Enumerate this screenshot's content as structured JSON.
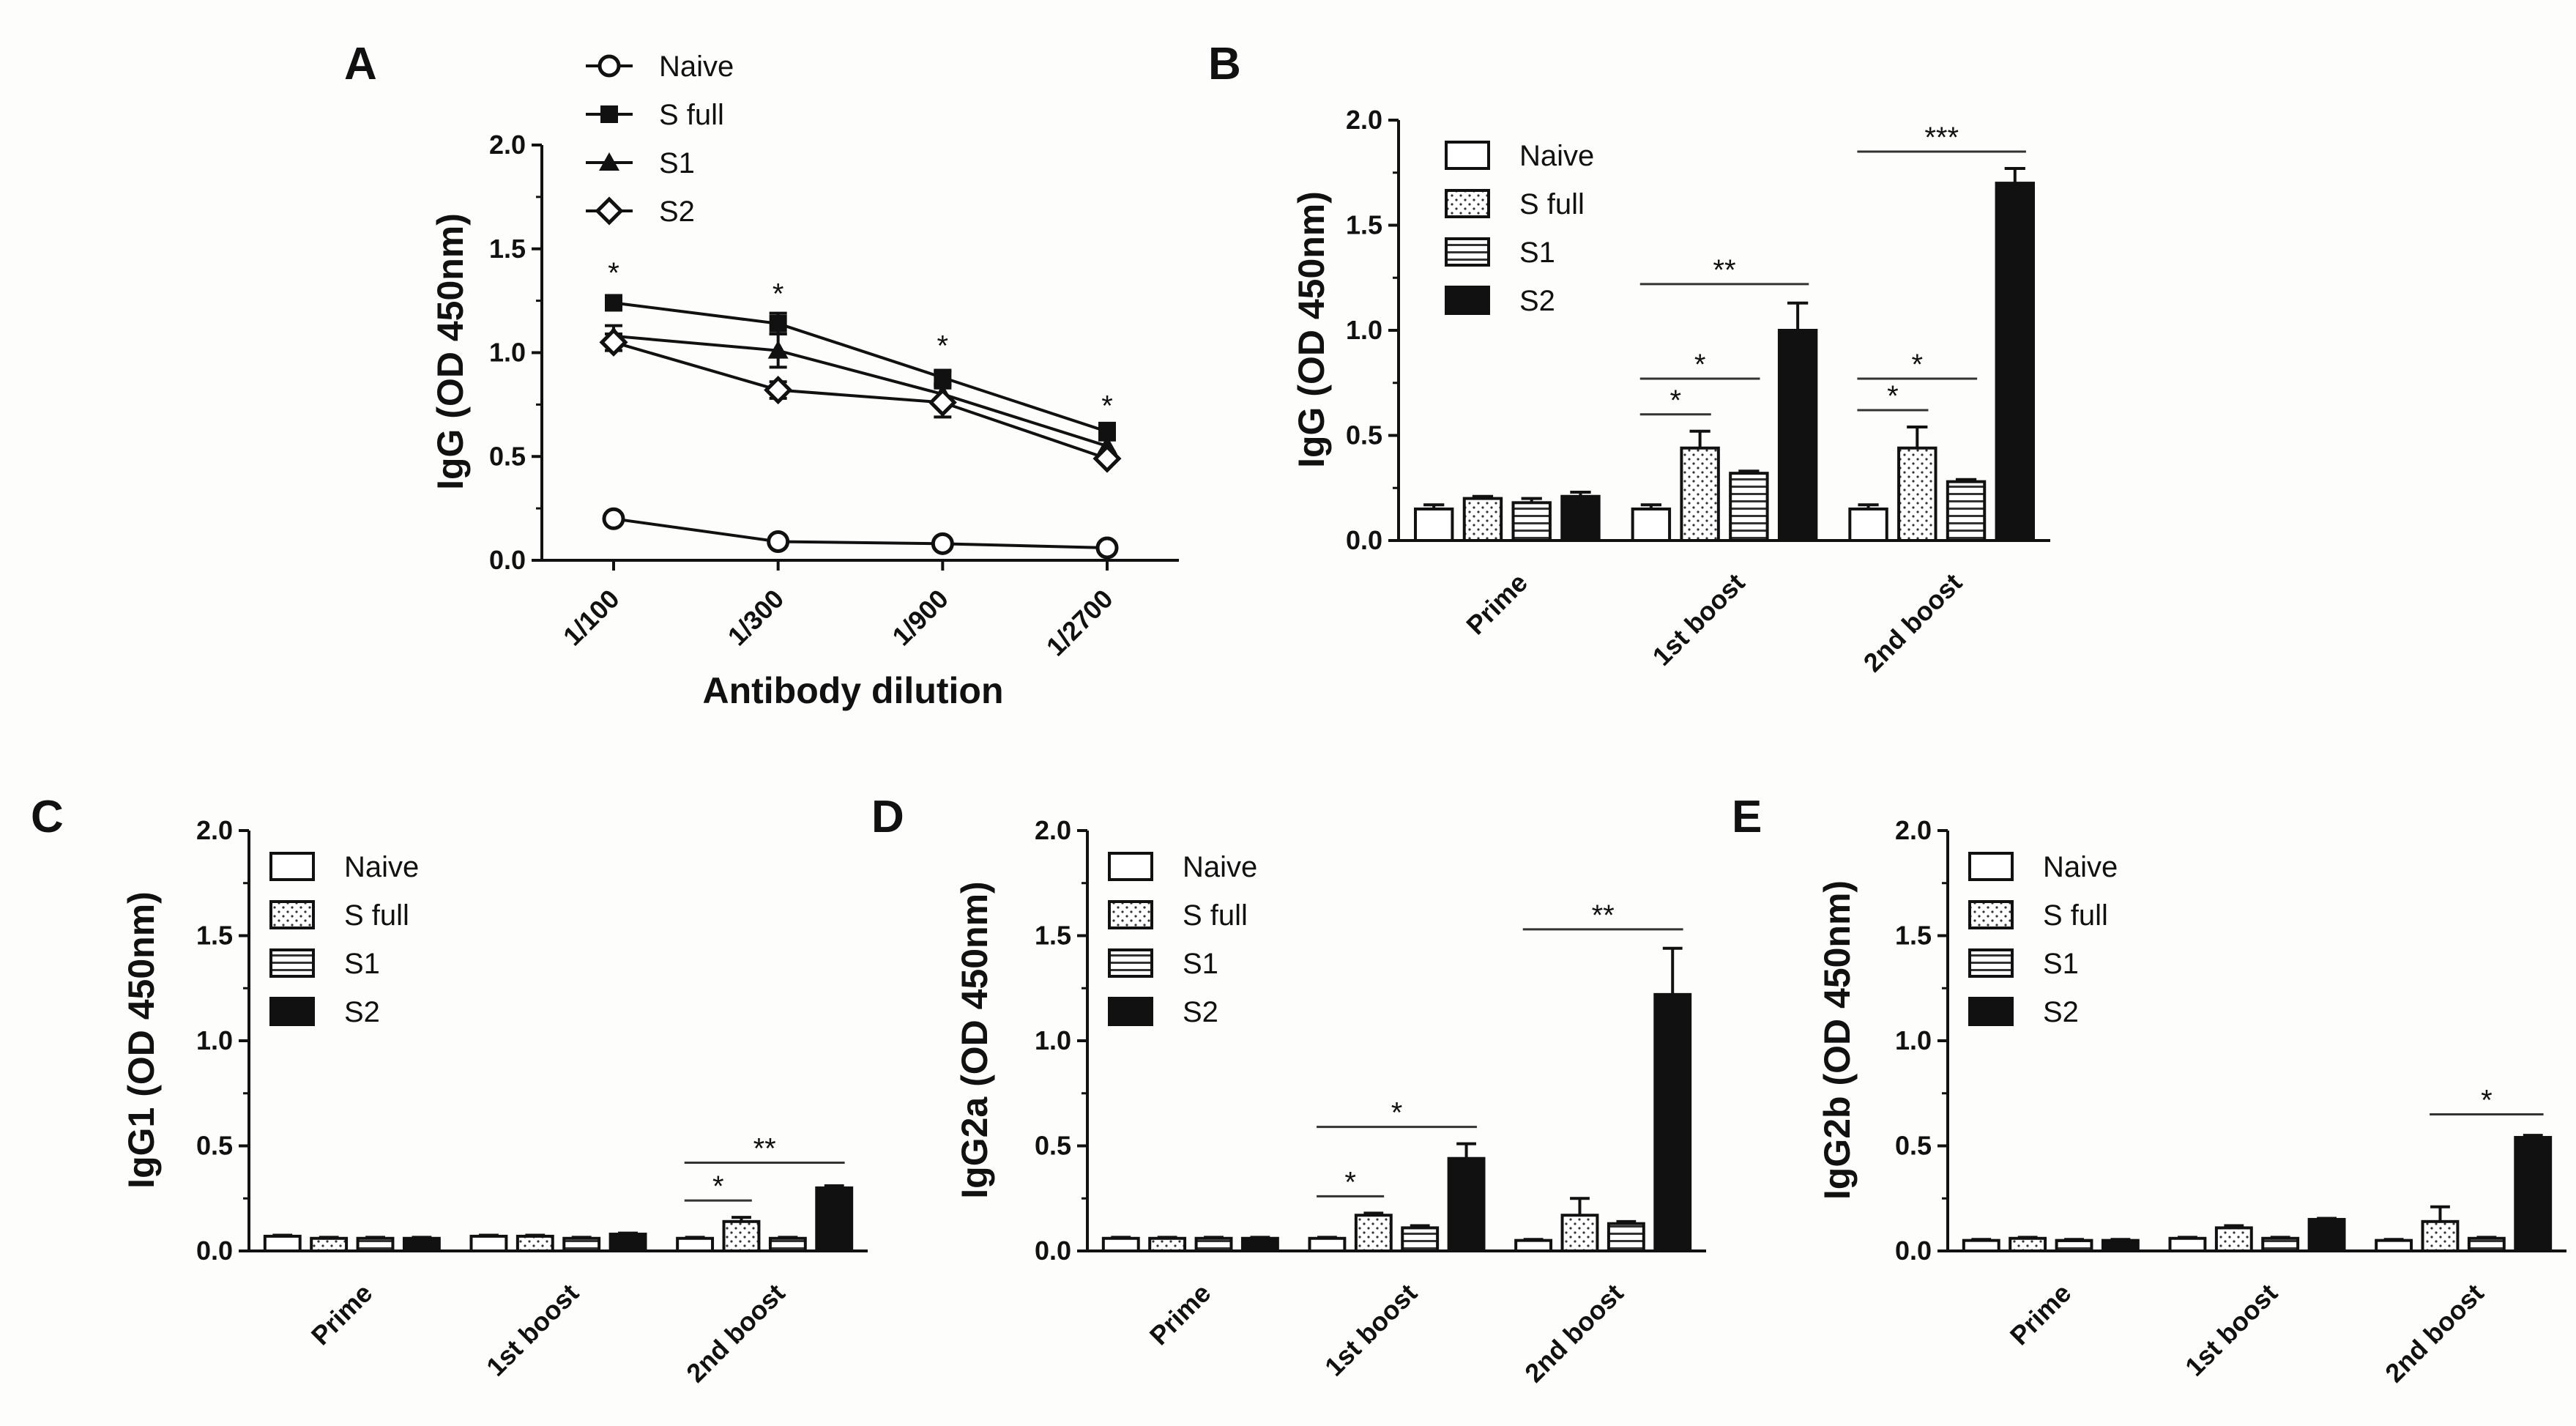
{
  "figure": {
    "legend_labels": [
      "Naive",
      "S full",
      "S1",
      "S2"
    ],
    "group_colors": [
      "#ffffff",
      "#ffffff",
      "#ffffff",
      "#111111"
    ]
  },
  "chart_data": [
    {
      "panel": "A",
      "type": "line",
      "title": "",
      "xlabel": "Antibody dilution",
      "ylabel": "IgG (OD 450nm)",
      "categories": [
        "1/100",
        "1/300",
        "1/900",
        "1/2700"
      ],
      "ylim": [
        0,
        2.0
      ],
      "yticks": [
        "0.0",
        "0.5",
        "1.0",
        "1.5",
        "2.0"
      ],
      "legend_position": "top-left",
      "series": [
        {
          "name": "Naive",
          "marker": "circle",
          "values": [
            0.2,
            0.09,
            0.08,
            0.06
          ],
          "errors": [
            0.01,
            0.01,
            0.01,
            0.01
          ]
        },
        {
          "name": "S full",
          "marker": "square",
          "values": [
            1.24,
            1.14,
            0.88,
            0.62
          ],
          "errors": [
            0.02,
            0.05,
            0.03,
            0.04
          ]
        },
        {
          "name": "S1",
          "marker": "triangle",
          "values": [
            1.08,
            1.01,
            0.8,
            0.55
          ],
          "errors": [
            0.05,
            0.08,
            0.04,
            0.03
          ]
        },
        {
          "name": "S2",
          "marker": "diamond",
          "values": [
            1.05,
            0.82,
            0.76,
            0.49
          ],
          "errors": [
            0.04,
            0.04,
            0.07,
            0.02
          ]
        }
      ],
      "annotations": [
        {
          "text": "*",
          "category": "1/100",
          "y": 1.4
        },
        {
          "text": "*",
          "category": "1/300",
          "y": 1.3
        },
        {
          "text": "*",
          "category": "1/900",
          "y": 1.05
        },
        {
          "text": "*",
          "category": "1/2700",
          "y": 0.76
        }
      ]
    },
    {
      "panel": "B",
      "type": "bar",
      "title": "",
      "xlabel": "",
      "ylabel": "IgG (OD 450nm)",
      "categories": [
        "Prime",
        "1st boost",
        "2nd boost"
      ],
      "ylim": [
        0,
        2.0
      ],
      "yticks": [
        "0.0",
        "0.5",
        "1.0",
        "1.5",
        "2.0"
      ],
      "legend_position": "top-left",
      "series": [
        {
          "name": "Naive",
          "pattern": "white",
          "values": [
            0.15,
            0.15,
            0.15
          ],
          "errors": [
            0.02,
            0.02,
            0.02
          ]
        },
        {
          "name": "S full",
          "pattern": "dotted",
          "values": [
            0.2,
            0.44,
            0.44
          ],
          "errors": [
            0.01,
            0.08,
            0.1
          ]
        },
        {
          "name": "S1",
          "pattern": "striped",
          "values": [
            0.18,
            0.32,
            0.28
          ],
          "errors": [
            0.02,
            0.01,
            0.01
          ]
        },
        {
          "name": "S2",
          "pattern": "black",
          "values": [
            0.21,
            1.0,
            1.7
          ],
          "errors": [
            0.02,
            0.13,
            0.07
          ]
        }
      ],
      "significance": [
        {
          "text": "*",
          "category": "1st boost",
          "from": 0,
          "to": 1,
          "y": 0.6
        },
        {
          "text": "*",
          "category": "1st boost",
          "from": 0,
          "to": 2,
          "y": 0.77
        },
        {
          "text": "**",
          "category": "1st boost",
          "from": 0,
          "to": 3,
          "y": 1.22
        },
        {
          "text": "*",
          "category": "2nd boost",
          "from": 0,
          "to": 1,
          "y": 0.62
        },
        {
          "text": "*",
          "category": "2nd boost",
          "from": 0,
          "to": 2,
          "y": 0.77
        },
        {
          "text": "***",
          "category": "2nd boost",
          "from": 0,
          "to": 3,
          "y": 1.85
        }
      ]
    },
    {
      "panel": "C",
      "type": "bar",
      "title": "",
      "xlabel": "",
      "ylabel": "IgG1 (OD 450nm)",
      "categories": [
        "Prime",
        "1st boost",
        "2nd boost"
      ],
      "ylim": [
        0,
        2.0
      ],
      "yticks": [
        "0.0",
        "0.5",
        "1.0",
        "1.5",
        "2.0"
      ],
      "legend_position": "top-left",
      "series": [
        {
          "name": "Naive",
          "pattern": "white",
          "values": [
            0.07,
            0.07,
            0.06
          ],
          "errors": [
            0.005,
            0.005,
            0.005
          ]
        },
        {
          "name": "S full",
          "pattern": "dotted",
          "values": [
            0.06,
            0.07,
            0.14
          ],
          "errors": [
            0.005,
            0.005,
            0.02
          ]
        },
        {
          "name": "S1",
          "pattern": "striped",
          "values": [
            0.06,
            0.06,
            0.06
          ],
          "errors": [
            0.005,
            0.005,
            0.005
          ]
        },
        {
          "name": "S2",
          "pattern": "black",
          "values": [
            0.06,
            0.08,
            0.3
          ],
          "errors": [
            0.005,
            0.005,
            0.01
          ]
        }
      ],
      "significance": [
        {
          "text": "*",
          "category": "2nd boost",
          "from": 0,
          "to": 1,
          "y": 0.24
        },
        {
          "text": "**",
          "category": "2nd boost",
          "from": 0,
          "to": 3,
          "y": 0.42
        }
      ]
    },
    {
      "panel": "D",
      "type": "bar",
      "title": "",
      "xlabel": "",
      "ylabel": "IgG2a (OD 450nm)",
      "categories": [
        "Prime",
        "1st boost",
        "2nd boost"
      ],
      "ylim": [
        0,
        2.0
      ],
      "yticks": [
        "0.0",
        "0.5",
        "1.0",
        "1.5",
        "2.0"
      ],
      "legend_position": "top-left",
      "series": [
        {
          "name": "Naive",
          "pattern": "white",
          "values": [
            0.06,
            0.06,
            0.05
          ],
          "errors": [
            0.005,
            0.005,
            0.005
          ]
        },
        {
          "name": "S full",
          "pattern": "dotted",
          "values": [
            0.06,
            0.17,
            0.17
          ],
          "errors": [
            0.005,
            0.01,
            0.08
          ]
        },
        {
          "name": "S1",
          "pattern": "striped",
          "values": [
            0.06,
            0.11,
            0.13
          ],
          "errors": [
            0.005,
            0.01,
            0.01
          ]
        },
        {
          "name": "S2",
          "pattern": "black",
          "values": [
            0.06,
            0.44,
            1.22
          ],
          "errors": [
            0.005,
            0.07,
            0.22
          ]
        }
      ],
      "significance": [
        {
          "text": "*",
          "category": "1st boost",
          "from": 0,
          "to": 1,
          "y": 0.26
        },
        {
          "text": "*",
          "category": "1st boost",
          "from": 0,
          "to": 3,
          "y": 0.59
        },
        {
          "text": "**",
          "category": "2nd boost",
          "from": 0,
          "to": 3,
          "y": 1.53
        }
      ]
    },
    {
      "panel": "E",
      "type": "bar",
      "title": "",
      "xlabel": "",
      "ylabel": "IgG2b (OD 450nm)",
      "categories": [
        "Prime",
        "1st boost",
        "2nd boost"
      ],
      "ylim": [
        0,
        2.0
      ],
      "yticks": [
        "0.0",
        "0.5",
        "1.0",
        "1.5",
        "2.0"
      ],
      "legend_position": "top-left",
      "series": [
        {
          "name": "Naive",
          "pattern": "white",
          "values": [
            0.05,
            0.06,
            0.05
          ],
          "errors": [
            0.005,
            0.005,
            0.005
          ]
        },
        {
          "name": "S full",
          "pattern": "dotted",
          "values": [
            0.06,
            0.11,
            0.14
          ],
          "errors": [
            0.005,
            0.01,
            0.07
          ]
        },
        {
          "name": "S1",
          "pattern": "striped",
          "values": [
            0.05,
            0.06,
            0.06
          ],
          "errors": [
            0.005,
            0.005,
            0.005
          ]
        },
        {
          "name": "S2",
          "pattern": "black",
          "values": [
            0.05,
            0.15,
            0.54
          ],
          "errors": [
            0.005,
            0.005,
            0.01
          ]
        }
      ],
      "significance": [
        {
          "text": "*",
          "category": "2nd boost",
          "from": 1,
          "to": 3,
          "y": 0.65
        }
      ]
    }
  ]
}
